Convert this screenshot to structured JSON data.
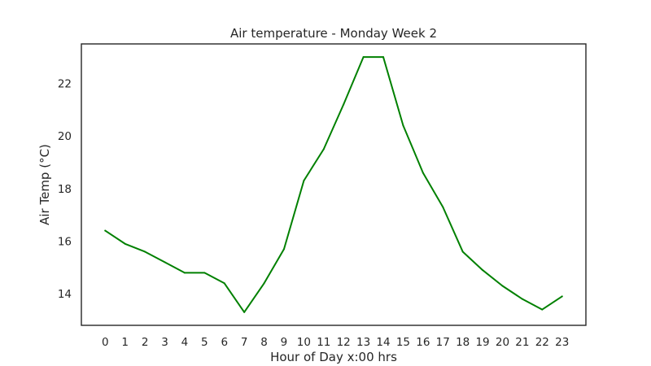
{
  "chart_data": {
    "type": "line",
    "title": "Air temperature - Monday Week 2",
    "xlabel": "Hour of Day x:00 hrs",
    "ylabel": "Air Temp (°C)",
    "x": [
      0,
      1,
      2,
      3,
      4,
      5,
      6,
      7,
      8,
      9,
      10,
      11,
      12,
      13,
      14,
      15,
      16,
      17,
      18,
      19,
      20,
      21,
      22,
      23
    ],
    "series": [
      {
        "values": [
          16.4,
          15.9,
          15.6,
          15.2,
          14.8,
          14.8,
          14.4,
          13.3,
          14.4,
          15.7,
          18.3,
          19.5,
          21.2,
          23.0,
          23.0,
          20.4,
          18.6,
          17.3,
          15.6,
          14.9,
          14.3,
          13.8,
          13.4,
          13.9
        ],
        "color": "#008000"
      }
    ],
    "xticks": [
      "0",
      "1",
      "2",
      "3",
      "4",
      "5",
      "6",
      "7",
      "8",
      "9",
      "10",
      "11",
      "12",
      "13",
      "14",
      "15",
      "16",
      "17",
      "18",
      "19",
      "20",
      "21",
      "22",
      "23"
    ],
    "yticks": [
      "14",
      "16",
      "18",
      "20",
      "22"
    ],
    "xlim": [
      -1.2,
      24.2
    ],
    "ylim": [
      12.8,
      23.5
    ],
    "grid": false,
    "legend": "none"
  }
}
